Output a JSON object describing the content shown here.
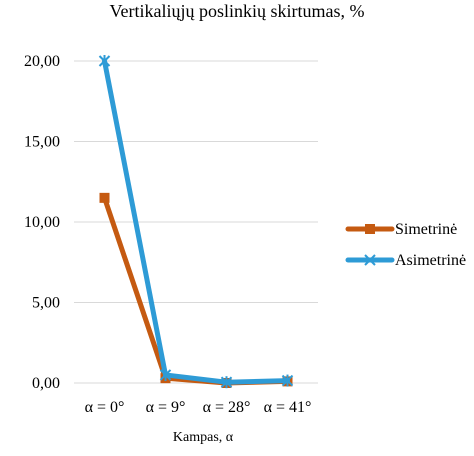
{
  "chart_data": {
    "type": "line",
    "title": "Vertikaliųjų poslinkių skirtumas, %",
    "xlabel": "Kampas, α",
    "ylabel": "",
    "categories": [
      "α = 0°",
      "α = 9°",
      "α = 28°",
      "α = 41°"
    ],
    "ylim": [
      0,
      20
    ],
    "yticks": [
      0,
      5,
      10,
      15,
      20
    ],
    "ytick_labels": [
      "0,00",
      "5,00",
      "10,00",
      "15,00",
      "20,00"
    ],
    "grid": true,
    "legend_position": "right",
    "series": [
      {
        "name": "Simetrinė",
        "values": [
          11.5,
          0.3,
          0.0,
          0.1
        ],
        "color": "#c55a11",
        "marker": "square"
      },
      {
        "name": "Asimetrinė",
        "values": [
          20.0,
          0.5,
          0.05,
          0.15
        ],
        "color": "#2e9bd6",
        "marker": "x"
      }
    ]
  }
}
